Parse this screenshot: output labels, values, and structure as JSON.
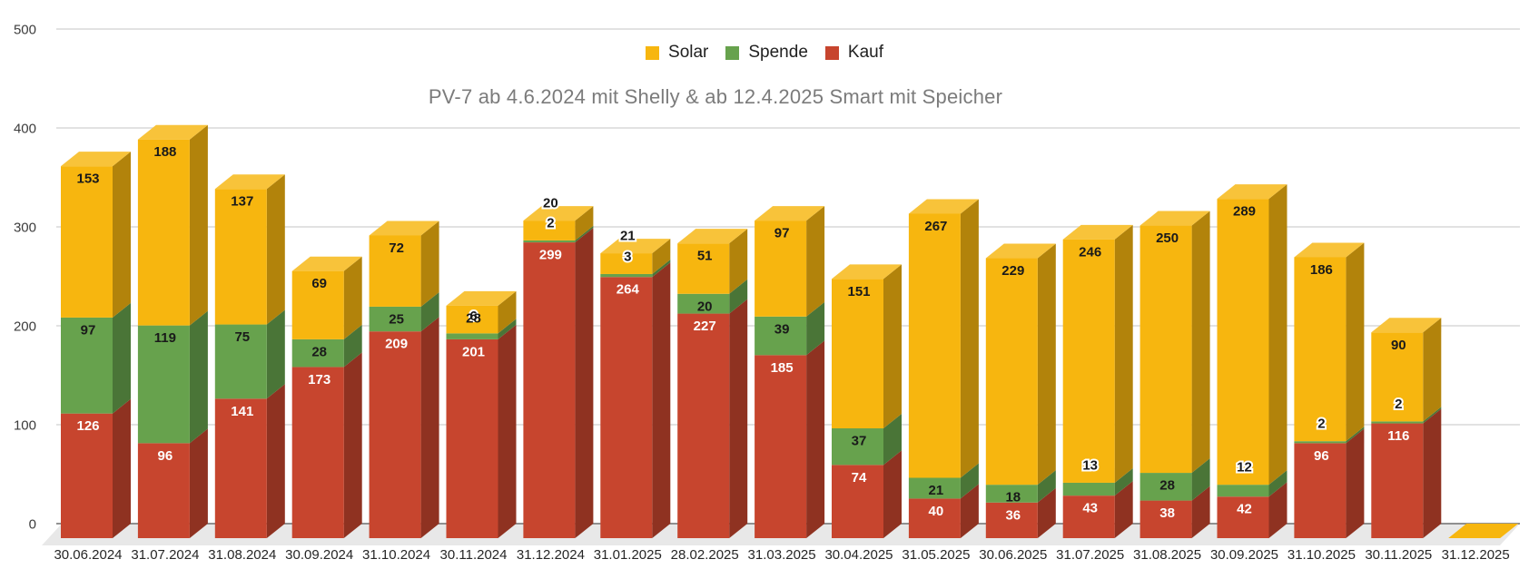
{
  "chart_data": {
    "type": "bar",
    "stacked": true,
    "three_d": true,
    "title": "PV-7 ab 4.6.2024 mit Shelly & ab 12.4.2025 Smart mit Speicher",
    "legend_position": "top",
    "grid": true,
    "background_color": "#ffffff",
    "gridline_color": "#d9d9d9",
    "baseline_color": "#6e6e6e",
    "floor_color": "#e8e8e8",
    "axis_label_color": "#3c3c3c",
    "title_color": "#7b7b7b",
    "ylim": [
      0,
      500
    ],
    "yticks": [
      0,
      100,
      200,
      300,
      400,
      500
    ],
    "categories": [
      "30.06.2024",
      "31.07.2024",
      "31.08.2024",
      "30.09.2024",
      "31.10.2024",
      "30.11.2024",
      "31.12.2024",
      "31.01.2025",
      "28.02.2025",
      "31.03.2025",
      "30.04.2025",
      "31.05.2025",
      "30.06.2025",
      "31.07.2025",
      "31.08.2025",
      "30.09.2025",
      "31.10.2025",
      "30.11.2025",
      "31.12.2025"
    ],
    "stack_order_bottom_to_top": [
      "Kauf",
      "Spende",
      "Solar"
    ],
    "series": [
      {
        "name": "Solar",
        "color": "#F7B60F",
        "label_color": "#1a1a1a",
        "values": [
          153,
          188,
          137,
          69,
          72,
          28,
          20,
          21,
          51,
          97,
          151,
          267,
          229,
          246,
          250,
          289,
          186,
          90,
          0
        ]
      },
      {
        "name": "Spende",
        "color": "#67A24D",
        "label_color": "#1a1a1a",
        "values": [
          97,
          119,
          75,
          28,
          25,
          6,
          2,
          3,
          20,
          39,
          37,
          21,
          18,
          13,
          28,
          12,
          2,
          2,
          0
        ]
      },
      {
        "name": "Kauf",
        "color": "#C7452E",
        "label_color": "#ffffff",
        "values": [
          126,
          96,
          141,
          173,
          209,
          201,
          299,
          264,
          227,
          185,
          74,
          40,
          36,
          43,
          38,
          42,
          96,
          116,
          0
        ]
      }
    ]
  }
}
